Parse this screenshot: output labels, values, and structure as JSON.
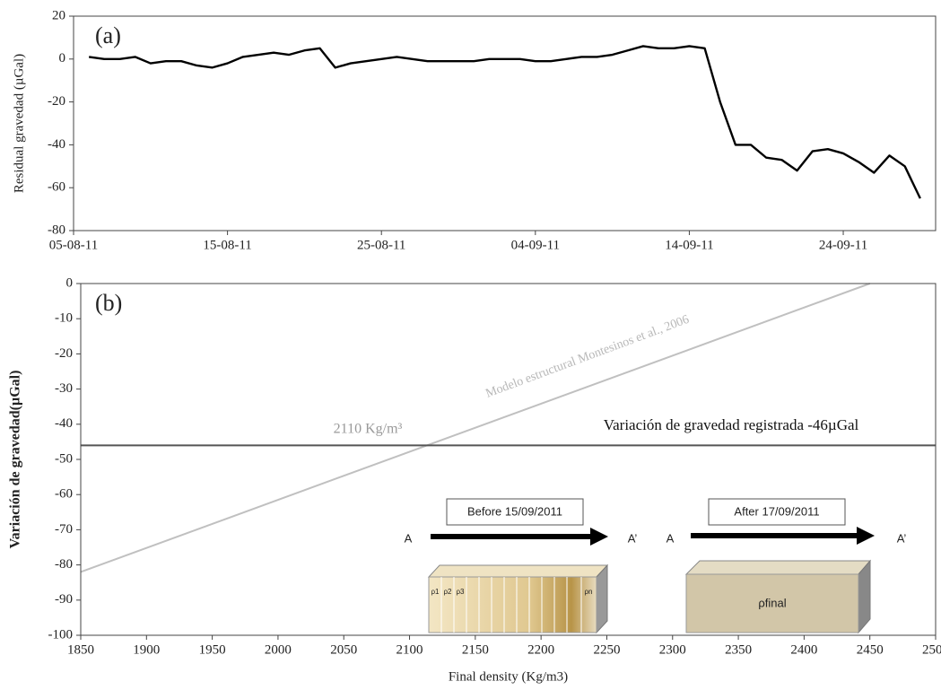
{
  "chart_data": [
    {
      "type": "line",
      "title": "(a)",
      "y_label": "Residual gravedad (µGal)",
      "x": [
        "06-08-11",
        "07-08-11",
        "08-08-11",
        "09-08-11",
        "10-08-11",
        "11-08-11",
        "12-08-11",
        "13-08-11",
        "14-08-11",
        "15-08-11",
        "16-08-11",
        "17-08-11",
        "18-08-11",
        "19-08-11",
        "20-08-11",
        "21-08-11",
        "22-08-11",
        "23-08-11",
        "24-08-11",
        "25-08-11",
        "26-08-11",
        "27-08-11",
        "28-08-11",
        "29-08-11",
        "30-08-11",
        "31-08-11",
        "01-09-11",
        "02-09-11",
        "03-09-11",
        "04-09-11",
        "05-09-11",
        "06-09-11",
        "07-09-11",
        "08-09-11",
        "09-09-11",
        "10-09-11",
        "11-09-11",
        "12-09-11",
        "13-09-11",
        "14-09-11",
        "15-09-11",
        "16-09-11",
        "17-09-11",
        "18-09-11",
        "19-09-11",
        "20-09-11",
        "21-09-11",
        "22-09-11",
        "23-09-11",
        "24-09-11",
        "25-09-11",
        "26-09-11",
        "27-09-11",
        "28-09-11",
        "29-09-11"
      ],
      "values": [
        1,
        0,
        0,
        1,
        -2,
        -1,
        -1,
        -3,
        -4,
        -2,
        1,
        2,
        3,
        2,
        4,
        5,
        -4,
        -2,
        -1,
        0,
        1,
        0,
        -1,
        -1,
        -1,
        -1,
        0,
        0,
        0,
        -1,
        -1,
        0,
        1,
        1,
        2,
        4,
        6,
        5,
        5,
        6,
        5,
        -20,
        -40,
        -40,
        -46,
        -47,
        -52,
        -43,
        -42,
        -44,
        -48,
        -53,
        -45,
        -50,
        -65
      ],
      "color": "#000000",
      "xlim": [
        "05-08-11",
        "30-09-11"
      ],
      "xticks": [
        "05-08-11",
        "15-08-11",
        "25-08-11",
        "04-09-11",
        "14-09-11",
        "24-09-11"
      ],
      "ylim": [
        -80,
        20
      ],
      "yticks": [
        -80,
        -60,
        -40,
        -20,
        0,
        20
      ]
    },
    {
      "type": "line",
      "title": "(b)",
      "x_label": "Final density (Kg/m3)",
      "y_label": "Variación de gravedad(µGal)",
      "series": [
        {
          "x": [
            1850,
            2450
          ],
          "values": [
            -82,
            0
          ],
          "color": "#c0c0c0"
        },
        {
          "x": [
            1850,
            2500
          ],
          "values": [
            -46,
            -46
          ],
          "color": "#555555"
        }
      ],
      "annotations": [
        "Modelo estructural Montesinos et al., 2006",
        "2110 Kg/m³",
        "Variación de gravedad registrada -46µGal"
      ],
      "xlim": [
        1850,
        2500
      ],
      "xticks": [
        1850,
        1900,
        1950,
        2000,
        2050,
        2100,
        2150,
        2200,
        2250,
        2300,
        2350,
        2400,
        2450,
        2500
      ],
      "ylim": [
        -100,
        0
      ],
      "yticks": [
        -100,
        -90,
        -80,
        -70,
        -60,
        -50,
        -40,
        -30,
        -20,
        -10,
        0
      ]
    }
  ],
  "diagram": {
    "before": "Before 15/09/2011",
    "after": "After 17/09/2011",
    "a": "A",
    "a_prime": "A’",
    "rho_labels": [
      "ρ1",
      "ρ2",
      "ρ3",
      "ρn"
    ],
    "rho_final": "ρfinal"
  }
}
